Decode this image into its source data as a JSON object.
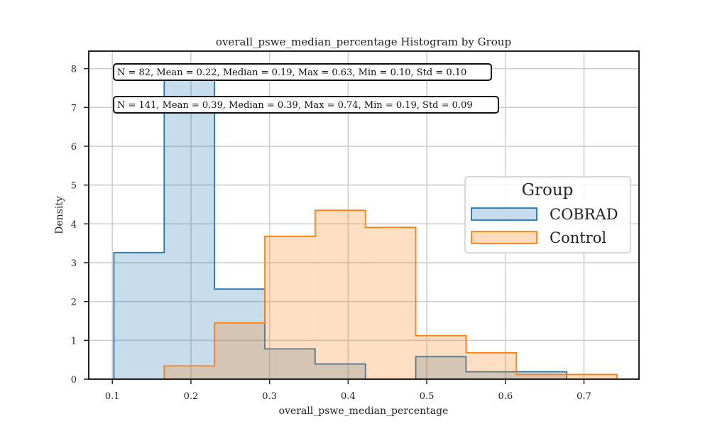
{
  "chart_data": {
    "type": "histogram",
    "title": "overall_pswe_median_percentage Histogram by Group",
    "xlabel": "overall_pswe_median_percentage",
    "ylabel": "Density",
    "xlim": [
      0.07,
      0.77
    ],
    "ylim": [
      0,
      8.45
    ],
    "x_ticks": [
      0.1,
      0.2,
      0.3,
      0.4,
      0.5,
      0.6,
      0.7
    ],
    "x_tick_labels": [
      "0.1",
      "0.2",
      "0.3",
      "0.4",
      "0.5",
      "0.6",
      "0.7"
    ],
    "y_ticks": [
      0,
      1,
      2,
      3,
      4,
      5,
      6,
      7,
      8
    ],
    "y_tick_labels": [
      "0",
      "1",
      "2",
      "3",
      "4",
      "5",
      "6",
      "7",
      "8"
    ],
    "grid": true,
    "legend": {
      "title": "Group",
      "placement": "center-right"
    },
    "annotations": [
      "N = 82, Mean = 0.22, Median = 0.19, Max = 0.63, Min = 0.10, Std = 0.10",
      "N = 141, Mean = 0.39, Median = 0.39, Max = 0.74, Min = 0.19, Std = 0.09"
    ],
    "series": [
      {
        "name": "COBRAD",
        "color": "#1f77b4",
        "fill": "#c6dcec",
        "bin_edges": [
          0.102,
          0.166,
          0.23,
          0.294,
          0.358,
          0.422,
          0.486,
          0.55,
          0.614,
          0.678
        ],
        "values": [
          3.26,
          7.75,
          2.32,
          0.78,
          0.39,
          0.0,
          0.58,
          0.19,
          0.19
        ]
      },
      {
        "name": "Control",
        "color": "#ff7f0e",
        "fill": "#ffdbbd",
        "bin_edges": [
          0.166,
          0.23,
          0.294,
          0.358,
          0.422,
          0.486,
          0.55,
          0.614,
          0.678,
          0.742
        ],
        "values": [
          0.34,
          1.45,
          3.68,
          4.35,
          3.91,
          1.12,
          0.68,
          0.12,
          0.12
        ]
      }
    ]
  }
}
